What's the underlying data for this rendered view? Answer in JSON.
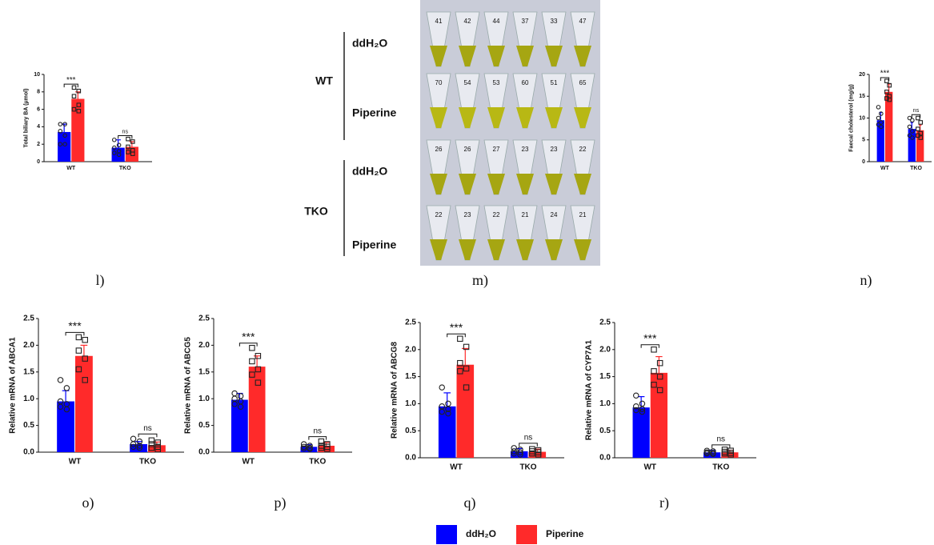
{
  "chart_data": [
    {
      "type": "bar",
      "panel": "l)",
      "ylabel": "Total biliary BA (μmol)",
      "categories": [
        "WT",
        "TKO"
      ],
      "series": [
        {
          "name": "ddH₂O",
          "color": "#0000ff",
          "values": [
            3.4,
            1.6
          ],
          "errors": [
            0.9,
            0.9
          ],
          "points": [
            [
              4.3,
              4.3,
              3.5,
              3.0,
              2.0,
              2.0
            ],
            [
              2.5,
              1.9,
              1.6,
              1.2,
              1.0,
              0.8
            ]
          ]
        },
        {
          "name": "Piperine",
          "color": "#ff2a2a",
          "values": [
            7.2,
            1.7
          ],
          "errors": [
            0.8,
            0.6
          ],
          "points": [
            [
              8.5,
              8.1,
              7.5,
              6.5,
              6.0,
              5.8
            ],
            [
              2.6,
              2.3,
              1.7,
              1.3,
              1.1,
              0.9
            ]
          ]
        }
      ],
      "annotations": [
        "***",
        "ns"
      ],
      "ylim": [
        0,
        10
      ],
      "yticks": [
        0,
        2,
        4,
        6,
        8,
        10
      ]
    },
    {
      "type": "bar",
      "panel": "n)",
      "ylabel": "Faecal cholesterol (mg/g)",
      "categories": [
        "WT",
        "TKO"
      ],
      "series": [
        {
          "name": "ddH₂O",
          "color": "#0000ff",
          "values": [
            9.5,
            7.5
          ],
          "errors": [
            1.8,
            1.5
          ],
          "points": [
            [
              12.5,
              11.0,
              10.0,
              9.0,
              8.5,
              8.0
            ],
            [
              10.0,
              9.5,
              8.0,
              7.0,
              6.0,
              5.5
            ]
          ]
        },
        {
          "name": "Piperine",
          "color": "#ff2a2a",
          "values": [
            16.0,
            7.2
          ],
          "errors": [
            1.8,
            1.2
          ],
          "points": [
            [
              18.5,
              17.5,
              16.0,
              15.0,
              14.5,
              14.2
            ],
            [
              10.0,
              9.0,
              7.5,
              6.5,
              6.0,
              5.5
            ]
          ]
        }
      ],
      "annotations": [
        "***",
        "ns"
      ],
      "ylim": [
        0,
        20
      ],
      "yticks": [
        0,
        5,
        10,
        15,
        20
      ]
    },
    {
      "type": "bar",
      "panel": "o)",
      "ylabel": "Relative mRNA of ABCA1",
      "categories": [
        "WT",
        "TKO"
      ],
      "series": [
        {
          "name": "ddH₂O",
          "color": "#0000ff",
          "values": [
            0.95,
            0.15
          ],
          "errors": [
            0.2,
            0.05
          ],
          "points": [
            [
              1.35,
              1.2,
              0.95,
              0.9,
              0.85,
              0.8
            ],
            [
              0.25,
              0.2,
              0.15,
              0.12,
              0.1,
              0.08
            ]
          ]
        },
        {
          "name": "Piperine",
          "color": "#ff2a2a",
          "values": [
            1.8,
            0.13
          ],
          "errors": [
            0.2,
            0.06
          ],
          "points": [
            [
              2.15,
              2.1,
              1.9,
              1.75,
              1.55,
              1.35
            ],
            [
              0.22,
              0.18,
              0.15,
              0.1,
              0.08,
              0.05
            ]
          ]
        }
      ],
      "annotations": [
        "***",
        "ns"
      ],
      "ylim": [
        0,
        2.5
      ],
      "yticks": [
        {
          "value": 0,
          "label": "0.0"
        },
        0.5,
        {
          "value": 1,
          "label": "1.0"
        },
        1.5,
        {
          "value": 2,
          "label": "2.0"
        },
        2.5
      ]
    },
    {
      "type": "bar",
      "panel": "p)",
      "ylabel": "Relative mRNA of ABCG5",
      "categories": [
        "WT",
        "TKO"
      ],
      "series": [
        {
          "name": "ddH₂O",
          "color": "#0000ff",
          "values": [
            0.98,
            0.1
          ],
          "errors": [
            0.12,
            0.04
          ],
          "points": [
            [
              1.1,
              1.05,
              1.0,
              0.95,
              0.9,
              0.85
            ],
            [
              0.15,
              0.12,
              0.1,
              0.08,
              0.07,
              0.06
            ]
          ]
        },
        {
          "name": "Piperine",
          "color": "#ff2a2a",
          "values": [
            1.6,
            0.12
          ],
          "errors": [
            0.2,
            0.06
          ],
          "points": [
            [
              1.95,
              1.8,
              1.7,
              1.55,
              1.45,
              1.3
            ],
            [
              0.2,
              0.15,
              0.12,
              0.1,
              0.08,
              0.06
            ]
          ]
        }
      ],
      "annotations": [
        "***",
        "ns"
      ],
      "ylim": [
        0,
        2.5
      ],
      "yticks": [
        {
          "value": 0,
          "label": "0.0"
        },
        0.5,
        {
          "value": 1,
          "label": "1.0"
        },
        1.5,
        {
          "value": 2,
          "label": "2.0"
        },
        2.5
      ]
    },
    {
      "type": "bar",
      "panel": "q)",
      "ylabel": "Relative mRNA of ABCG8",
      "categories": [
        "WT",
        "TKO"
      ],
      "series": [
        {
          "name": "ddH₂O",
          "color": "#0000ff",
          "values": [
            0.95,
            0.12
          ],
          "errors": [
            0.25,
            0.05
          ],
          "points": [
            [
              1.3,
              1.0,
              0.95,
              0.9,
              0.85,
              0.82
            ],
            [
              0.18,
              0.15,
              0.12,
              0.1,
              0.08,
              0.06
            ]
          ]
        },
        {
          "name": "Piperine",
          "color": "#ff2a2a",
          "values": [
            1.72,
            0.11
          ],
          "errors": [
            0.3,
            0.05
          ],
          "points": [
            [
              2.2,
              2.05,
              1.75,
              1.65,
              1.6,
              1.3
            ],
            [
              0.16,
              0.14,
              0.12,
              0.1,
              0.08,
              0.06
            ]
          ]
        }
      ],
      "annotations": [
        "***",
        "ns"
      ],
      "ylim": [
        0,
        2.5
      ],
      "yticks": [
        {
          "value": 0,
          "label": "0.0"
        },
        0.5,
        {
          "value": 1,
          "label": "1.0"
        },
        1.5,
        {
          "value": 2,
          "label": "2.0"
        },
        2.5
      ]
    },
    {
      "type": "bar",
      "panel": "r)",
      "ylabel": "Relative mRNA of CYP7A1",
      "categories": [
        "WT",
        "TKO"
      ],
      "series": [
        {
          "name": "ddH₂O",
          "color": "#0000ff",
          "values": [
            0.93,
            0.1
          ],
          "errors": [
            0.2,
            0.04
          ],
          "points": [
            [
              1.15,
              1.0,
              0.95,
              0.9,
              0.88,
              0.85
            ],
            [
              0.13,
              0.12,
              0.1,
              0.09,
              0.08,
              0.07
            ]
          ]
        },
        {
          "name": "Piperine",
          "color": "#ff2a2a",
          "values": [
            1.57,
            0.1
          ],
          "errors": [
            0.3,
            0.04
          ],
          "points": [
            [
              2.0,
              1.75,
              1.6,
              1.5,
              1.35,
              1.25
            ],
            [
              0.15,
              0.13,
              0.11,
              0.09,
              0.08,
              0.06
            ]
          ]
        }
      ],
      "annotations": [
        "***",
        "ns"
      ],
      "ylim": [
        0,
        2.5
      ],
      "yticks": [
        {
          "value": 0,
          "label": "0.0"
        },
        0.5,
        {
          "value": 1,
          "label": "1.0"
        },
        1.5,
        {
          "value": 2,
          "label": "2.0"
        },
        2.5
      ]
    }
  ],
  "photo": {
    "panel": "m)",
    "groups": [
      {
        "label": "WT",
        "rows": [
          "ddH₂O",
          "Piperine"
        ]
      },
      {
        "label": "TKO",
        "rows": [
          "ddH₂O",
          "Piperine"
        ]
      }
    ],
    "tubes": [
      [
        41,
        42,
        44,
        37,
        33,
        47
      ],
      [
        70,
        54,
        53,
        60,
        51,
        65
      ],
      [
        26,
        26,
        27,
        23,
        23,
        22
      ],
      [
        22,
        23,
        22,
        21,
        24,
        21
      ]
    ]
  }
}
